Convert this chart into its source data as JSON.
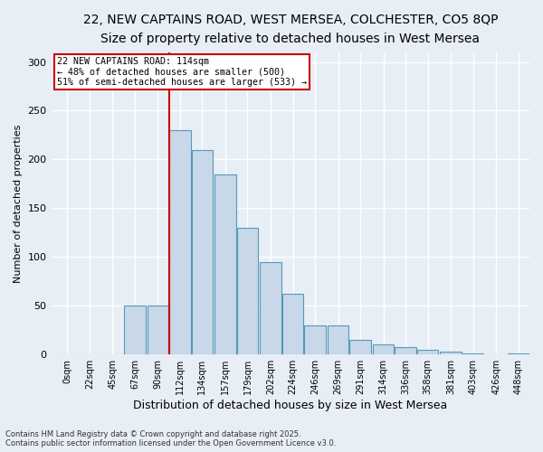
{
  "title_line1": "22, NEW CAPTAINS ROAD, WEST MERSEA, COLCHESTER, CO5 8QP",
  "title_line2": "Size of property relative to detached houses in West Mersea",
  "xlabel": "Distribution of detached houses by size in West Mersea",
  "ylabel": "Number of detached properties",
  "bins": [
    0,
    22,
    45,
    67,
    90,
    112,
    134,
    157,
    179,
    202,
    224,
    246,
    269,
    291,
    314,
    336,
    358,
    381,
    403,
    426,
    448
  ],
  "values": [
    0,
    0,
    0,
    50,
    50,
    230,
    210,
    185,
    130,
    95,
    62,
    30,
    30,
    15,
    10,
    8,
    5,
    3,
    1,
    0,
    1
  ],
  "bar_color": "#c8d8e8",
  "bar_edge_color": "#5599bb",
  "property_line_x": 112,
  "property_line_color": "#cc0000",
  "annotation_text": "22 NEW CAPTAINS ROAD: 114sqm\n← 48% of detached houses are smaller (500)\n51% of semi-detached houses are larger (533) →",
  "annotation_box_color": "#ffffff",
  "annotation_box_edge_color": "#cc0000",
  "xlim": [
    -5,
    470
  ],
  "ylim": [
    0,
    310
  ],
  "yticks": [
    0,
    50,
    100,
    150,
    200,
    250,
    300
  ],
  "background_color": "#e8eef5",
  "grid_color": "#ffffff",
  "footer_line1": "Contains HM Land Registry data © Crown copyright and database right 2025.",
  "footer_line2": "Contains public sector information licensed under the Open Government Licence v3.0.",
  "title_fontsize": 10,
  "subtitle_fontsize": 9,
  "label_fontsize": 8,
  "tick_fontsize": 7,
  "tick_labels": [
    "0sqm",
    "22sqm",
    "45sqm",
    "67sqm",
    "90sqm",
    "112sqm",
    "134sqm",
    "157sqm",
    "179sqm",
    "202sqm",
    "224sqm",
    "246sqm",
    "269sqm",
    "291sqm",
    "314sqm",
    "336sqm",
    "358sqm",
    "381sqm",
    "403sqm",
    "426sqm",
    "448sqm"
  ]
}
